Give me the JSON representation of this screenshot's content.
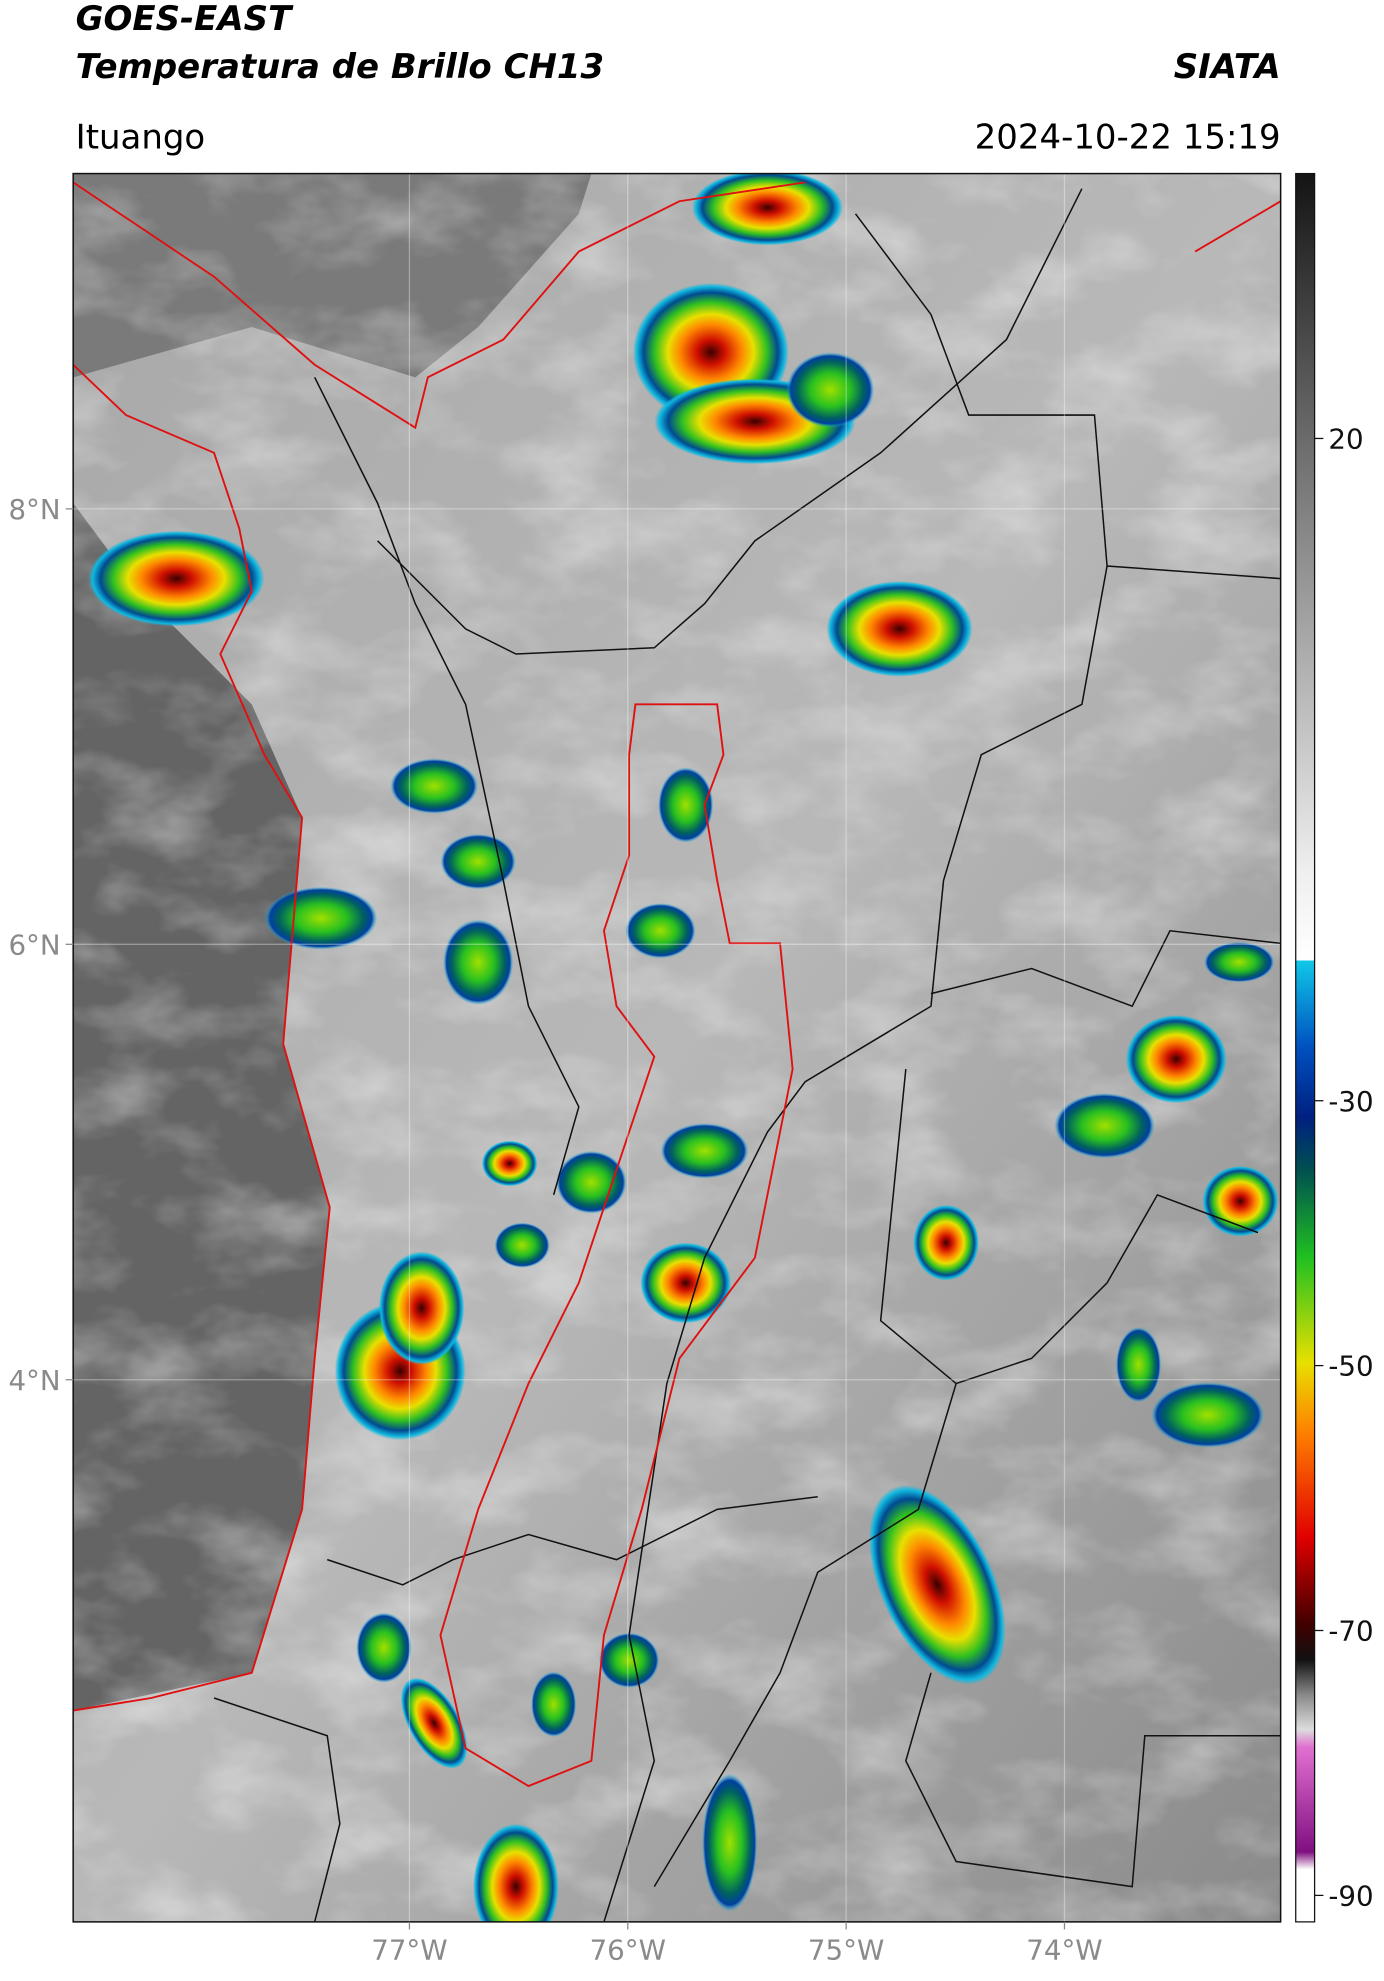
{
  "header": {
    "title": "GOES-EAST",
    "subtitle": "Temperatura de Brillo CH13",
    "organization": "SIATA",
    "location": "Ituango",
    "datetime": "2024-10-22 15:19"
  },
  "map": {
    "xlim": [
      -78.54,
      -73.01
    ],
    "ylim": [
      1.51,
      9.54
    ],
    "xticks": [
      {
        "value": -77,
        "label": "77°W"
      },
      {
        "value": -76,
        "label": "76°W"
      },
      {
        "value": -75,
        "label": "75°W"
      },
      {
        "value": -74,
        "label": "74°W"
      }
    ],
    "yticks": [
      {
        "value": 8,
        "label": "8°N"
      },
      {
        "value": 6,
        "label": "6°N"
      },
      {
        "value": 4,
        "label": "4°N"
      }
    ]
  },
  "colorbar": {
    "lim": [
      -92,
      40
    ],
    "ticks": [
      20,
      -30,
      -50,
      -70,
      -90
    ]
  }
}
